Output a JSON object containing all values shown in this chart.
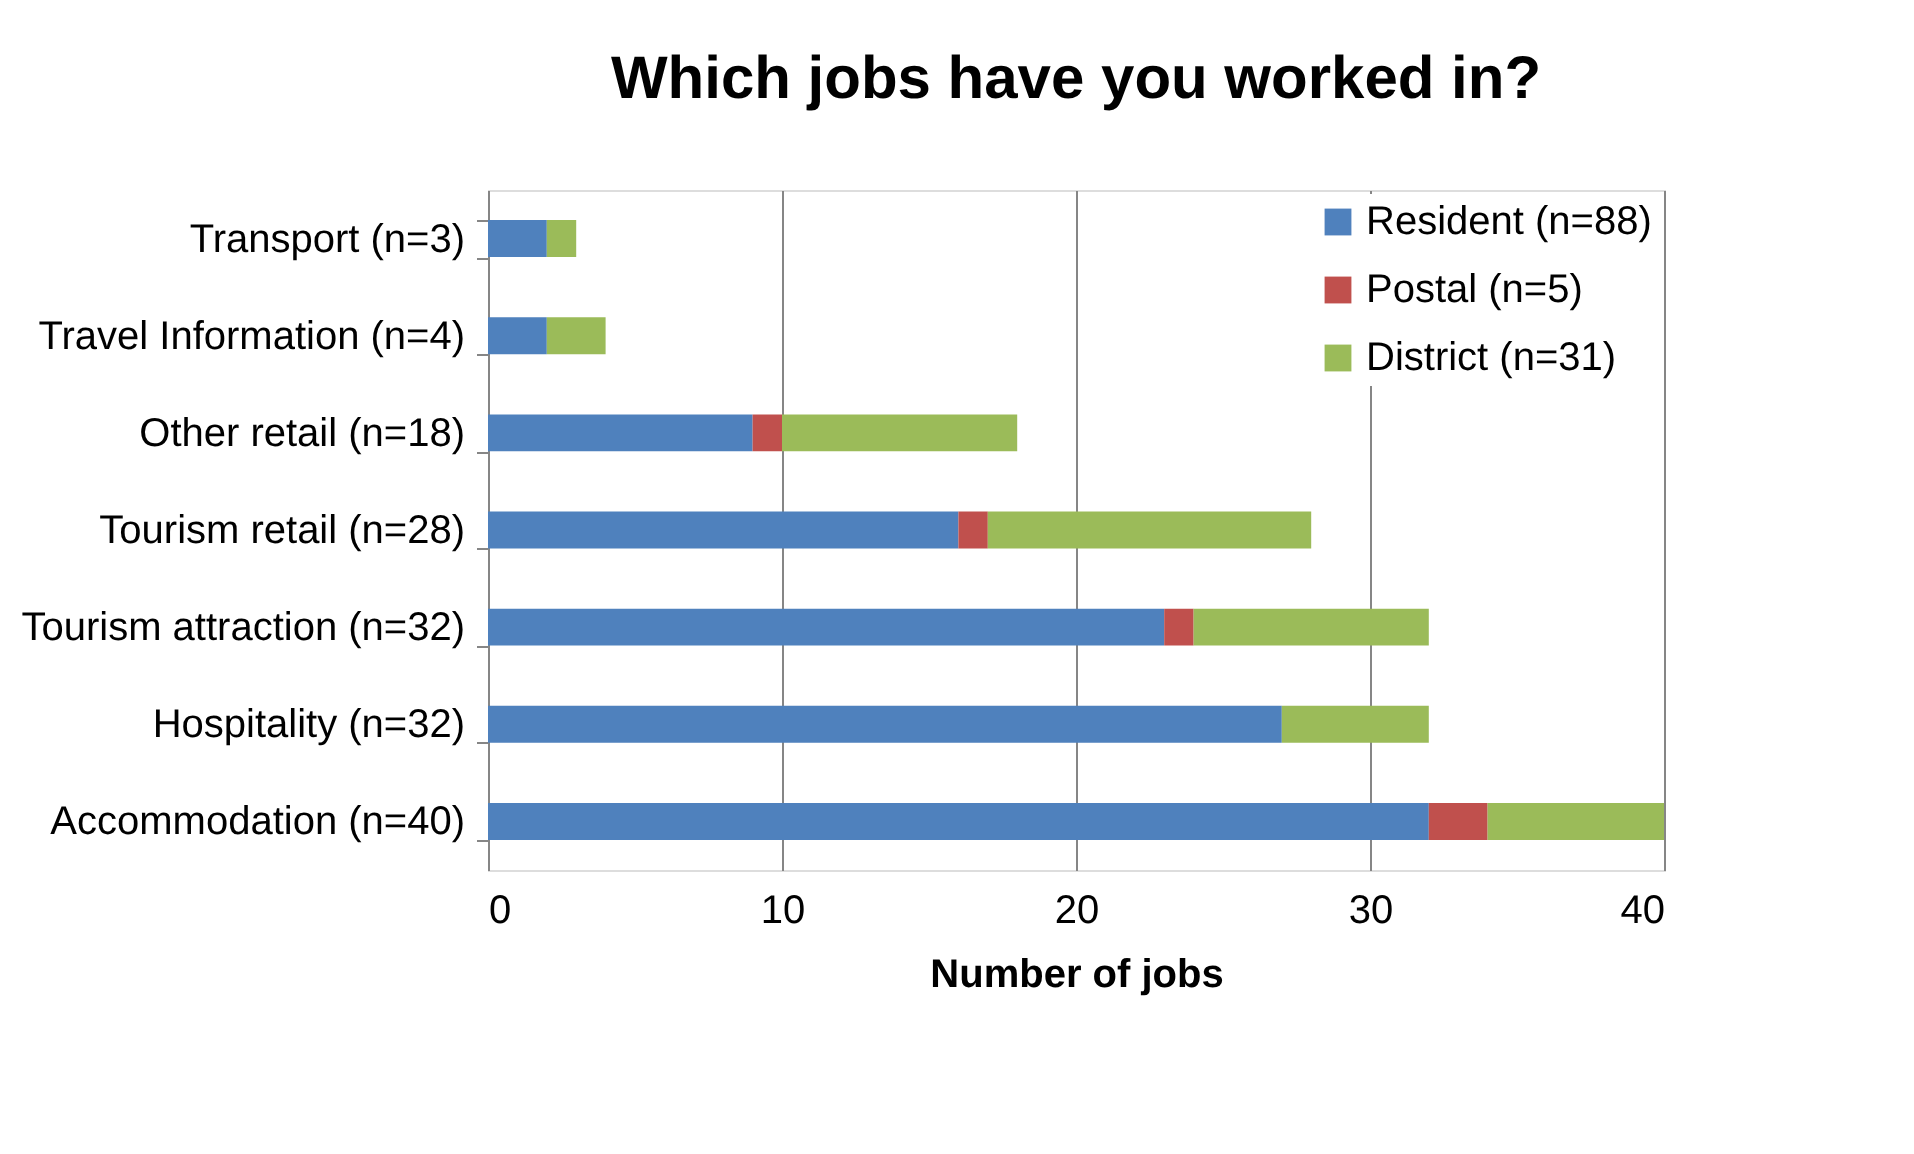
{
  "chart_data": {
    "type": "bar",
    "orientation": "horizontal",
    "stacked": true,
    "title": "Which jobs have you worked in?",
    "xlabel": "Number of jobs",
    "categories": [
      "Transport (n=3)",
      "Travel Information (n=4)",
      "Other retail (n=18)",
      "Tourism retail (n=28)",
      "Tourism attraction (n=32)",
      "Hospitality (n=32)",
      "Accommodation (n=40)"
    ],
    "series": [
      {
        "name": "Resident (n=88)",
        "color": "#4f81bd",
        "values": [
          2,
          2,
          9,
          16,
          23,
          27,
          32
        ]
      },
      {
        "name": "Postal (n=5)",
        "color": "#c0504d",
        "values": [
          0,
          0,
          1,
          1,
          1,
          0,
          2
        ]
      },
      {
        "name": "District (n=31)",
        "color": "#9bbb59",
        "values": [
          1,
          2,
          8,
          11,
          8,
          5,
          6
        ]
      }
    ],
    "xlim": [
      0,
      40
    ],
    "xticks": [
      0,
      10,
      20,
      30,
      40
    ],
    "grid": "x",
    "legend": "top right"
  }
}
